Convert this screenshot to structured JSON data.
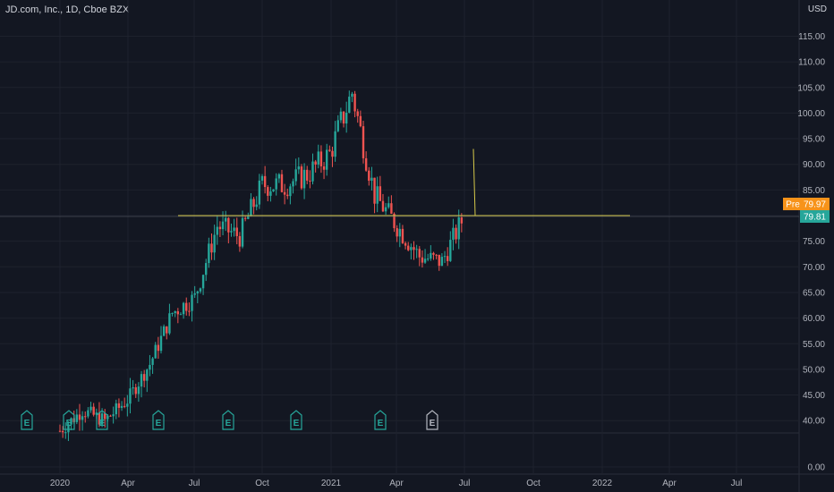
{
  "header": {
    "title": "JD.com, Inc., 1D, Cboe BZX",
    "currency": "USD"
  },
  "colors": {
    "up": "#26a69a",
    "down": "#ef5350",
    "level": "#d6c94a",
    "pre": "#f7931a",
    "last": "#26a69a",
    "earnings": "#26a69a"
  },
  "price_axis": {
    "ticks": [
      "115.00",
      "110.00",
      "105.00",
      "100.00",
      "95.00",
      "90.00",
      "85.00",
      "80.00",
      "75.00",
      "70.00",
      "65.00",
      "60.00",
      "55.00",
      "50.00",
      "45.00",
      "40.00",
      "0.00"
    ]
  },
  "time_axis": {
    "ticks": [
      "2020",
      "Apr",
      "Jul",
      "Oct",
      "2021",
      "Apr",
      "Jul",
      "Oct",
      "2022",
      "Apr",
      "Jul"
    ]
  },
  "price_labels": {
    "pre": {
      "prefix": "Pre",
      "value": "79.97"
    },
    "last": {
      "value": "79.81"
    }
  },
  "chart_data": {
    "type": "candlestick",
    "title": "JD.com, Inc., 1D, Cboe BZX",
    "ylabel": "USD",
    "ylim": [
      37,
      117
    ],
    "horizontal_level": 80.0,
    "pre_market_spike": {
      "from": 80.0,
      "to": 93.0
    },
    "series": [
      {
        "name": "",
        "points": [
          {
            "x": "2020-01",
            "y": 38
          },
          {
            "x": "2020-02",
            "y": 42
          },
          {
            "x": "2020-03",
            "y": 40
          },
          {
            "x": "2020-04",
            "y": 44
          },
          {
            "x": "2020-05",
            "y": 51
          },
          {
            "x": "2020-06",
            "y": 61
          },
          {
            "x": "2020-07",
            "y": 64
          },
          {
            "x": "2020-08",
            "y": 78
          },
          {
            "x": "2020-09",
            "y": 76
          },
          {
            "x": "2020-10",
            "y": 86
          },
          {
            "x": "2020-11",
            "y": 86
          },
          {
            "x": "2020-12",
            "y": 88
          },
          {
            "x": "2021-01",
            "y": 92
          },
          {
            "x": "2021-02",
            "y": 104
          },
          {
            "x": "2021-03",
            "y": 84
          },
          {
            "x": "2021-04",
            "y": 78
          },
          {
            "x": "2021-05",
            "y": 72
          },
          {
            "x": "2021-06",
            "y": 71
          },
          {
            "x": "2021-07",
            "y": 80
          }
        ]
      }
    ],
    "earnings_markers": [
      "E",
      "E",
      "E",
      "E",
      "E",
      "E",
      "E",
      "E"
    ]
  }
}
